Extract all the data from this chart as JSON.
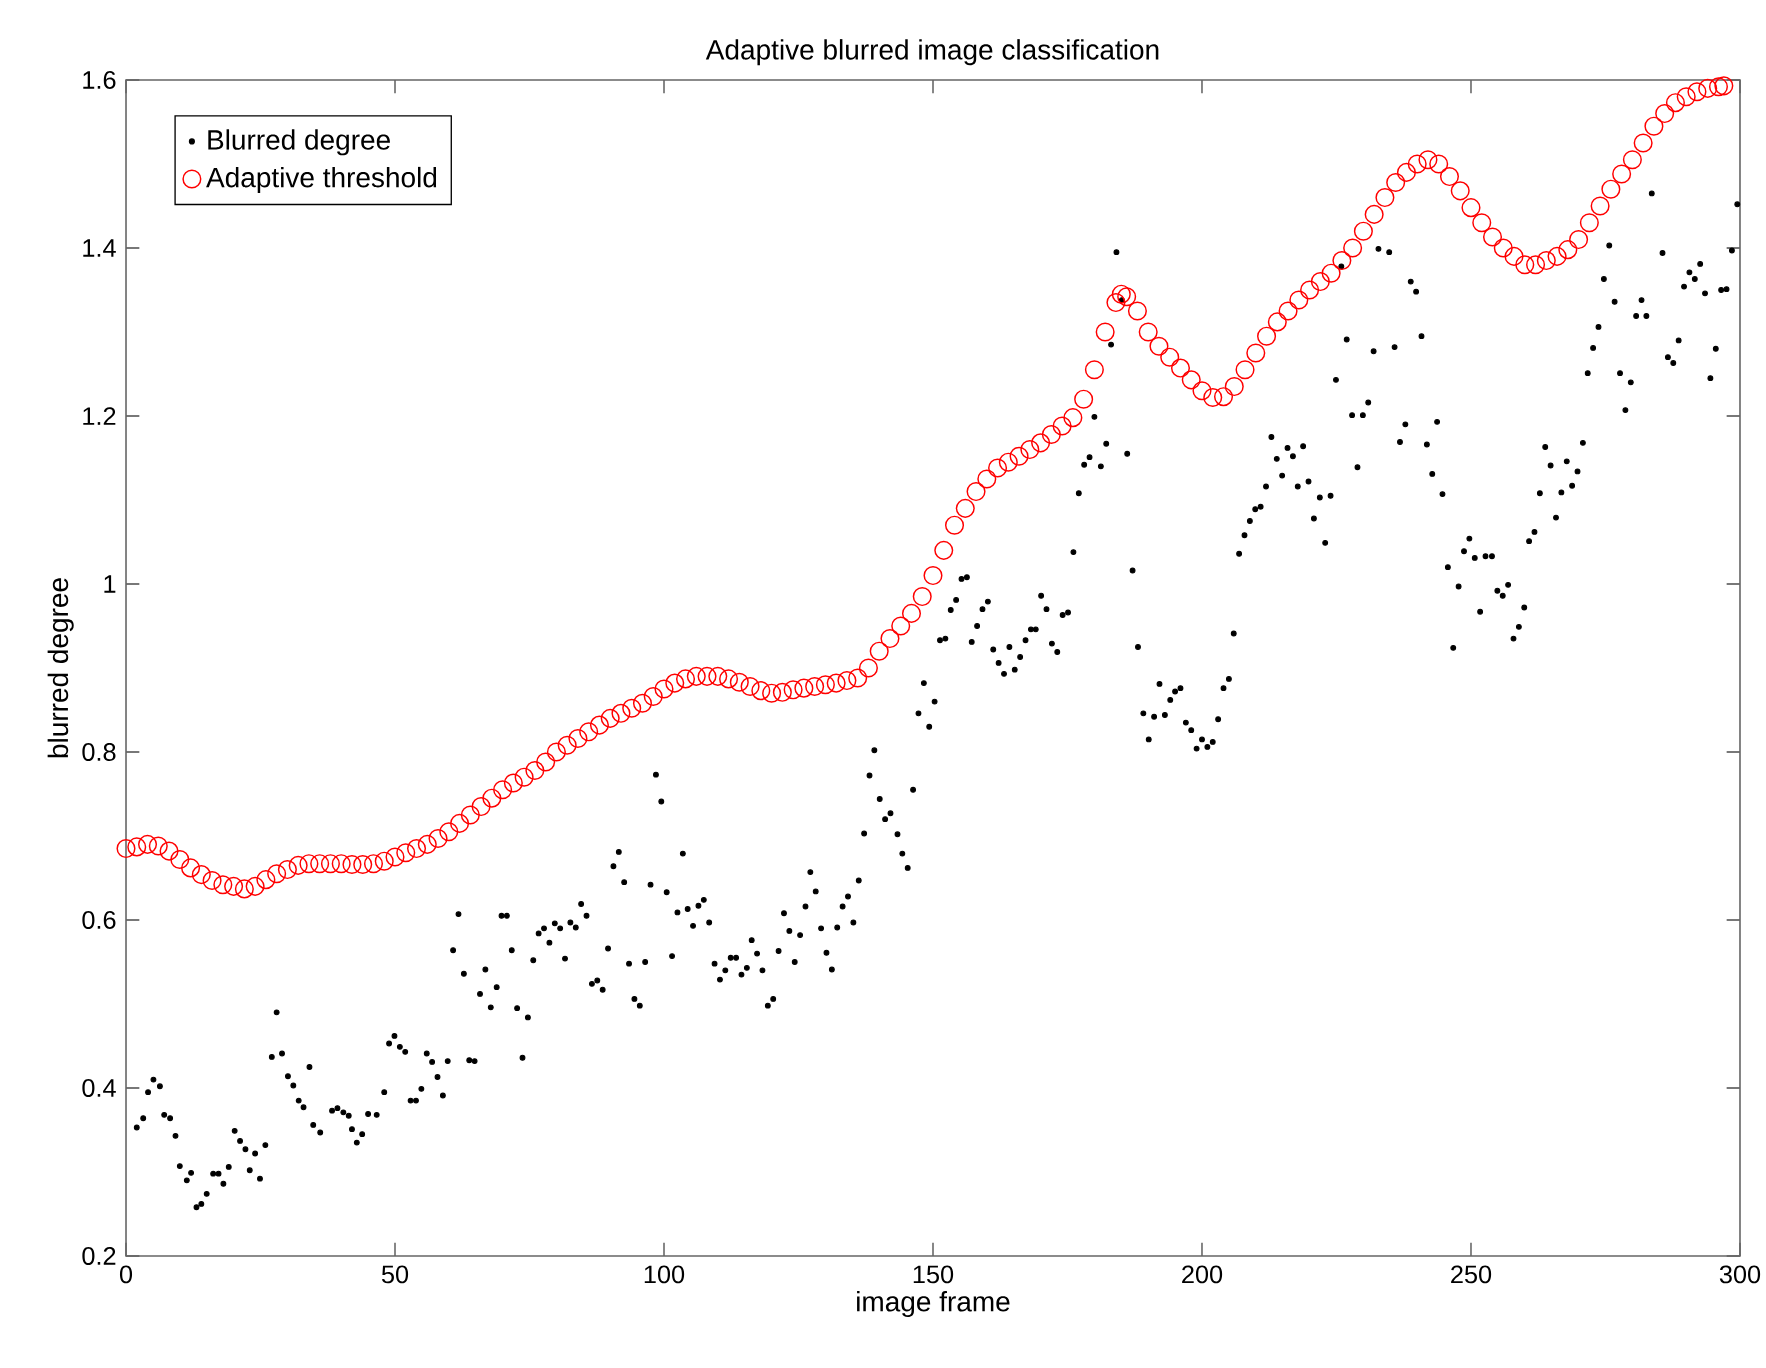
{
  "chart_data": {
    "type": "scatter",
    "title": "Adaptive blurred image classification",
    "xlabel": "image frame",
    "ylabel": "blurred degree",
    "xlim": [
      0,
      300
    ],
    "ylim": [
      0.2,
      1.6
    ],
    "xticks": [
      0,
      50,
      100,
      150,
      200,
      250,
      300
    ],
    "yticks": [
      0.2,
      0.4,
      0.6,
      0.8,
      1,
      1.2,
      1.4,
      1.6
    ],
    "grid": false,
    "legend": "top left",
    "marker": "circle",
    "series": [
      {
        "name": "Blurred degree",
        "color": "#000000",
        "x": [
          2.0,
          3.2,
          4.1,
          5.1,
          6.3,
          7.1,
          8.2,
          9.2,
          10.0,
          11.3,
          12.1,
          13.1,
          14.0,
          15.0,
          16.2,
          17.2,
          18.1,
          19.1,
          20.2,
          21.2,
          22.2,
          23.0,
          24.0,
          24.9,
          25.9,
          27.1,
          28.0,
          29.0,
          30.1,
          31.1,
          32.1,
          33.0,
          34.1,
          34.8,
          36.1,
          38.3,
          39.3,
          40.4,
          41.4,
          42.0,
          42.9,
          43.9,
          45.0,
          46.6,
          48.0,
          48.9,
          49.9,
          50.9,
          51.9,
          52.9,
          53.9,
          54.9,
          55.9,
          56.9,
          57.9,
          58.9,
          59.8,
          60.8,
          61.8,
          62.8,
          63.8,
          64.8,
          65.8,
          66.8,
          67.8,
          68.9,
          69.8,
          70.8,
          71.7,
          72.7,
          73.7,
          74.7,
          75.7,
          76.7,
          77.7,
          78.7,
          79.7,
          80.7,
          81.6,
          82.6,
          83.6,
          84.6,
          85.6,
          86.6,
          87.6,
          88.6,
          89.6,
          90.6,
          91.6,
          92.6,
          93.5,
          94.5,
          95.5,
          96.5,
          97.5,
          98.5,
          99.5,
          100.5,
          101.5,
          102.5,
          103.5,
          104.4,
          105.4,
          106.4,
          107.4,
          108.4,
          109.4,
          110.4,
          111.4,
          112.4,
          113.4,
          114.4,
          115.4,
          116.3,
          117.3,
          118.3,
          119.3,
          120.3,
          121.3,
          122.3,
          123.3,
          124.3,
          125.3,
          126.3,
          127.2,
          128.2,
          129.2,
          130.2,
          131.2,
          132.2,
          133.2,
          134.2,
          135.2,
          136.2,
          137.2,
          138.2,
          139.1,
          140.1,
          141.1,
          142.1,
          143.4,
          144.3,
          145.3,
          146.3,
          147.3,
          148.3,
          149.3,
          150.3,
          151.3,
          152.3,
          153.3,
          154.3,
          155.3,
          156.3,
          157.2,
          158.2,
          159.2,
          160.2,
          161.2,
          162.2,
          163.2,
          164.2,
          165.2,
          166.2,
          167.2,
          168.2,
          169.1,
          170.1,
          171.1,
          172.1,
          173.1,
          174.1,
          175.1,
          176.1,
          177.1,
          178.1,
          179.1,
          180.0,
          181.2,
          182.2,
          183.1,
          184.1,
          185.1,
          186.1,
          187.1,
          188.1,
          189.1,
          190.1,
          191.1,
          192.1,
          193.1,
          194.1,
          195.0,
          196.0,
          197.0,
          198.0,
          199.0,
          200.0,
          201.0,
          202.0,
          203.0,
          204.0,
          205.0,
          205.9,
          206.9,
          207.9,
          208.9,
          209.9,
          210.9,
          211.9,
          212.9,
          213.9,
          214.9,
          215.9,
          216.9,
          217.8,
          218.8,
          219.8,
          220.8,
          221.9,
          222.9,
          223.9,
          224.9,
          225.9,
          226.9,
          227.9,
          228.9,
          229.9,
          230.9,
          231.9,
          232.8,
          234.8,
          235.8,
          236.8,
          237.8,
          238.8,
          239.8,
          240.8,
          241.8,
          242.8,
          243.7,
          244.7,
          245.7,
          246.7,
          247.7,
          248.7,
          249.7,
          250.7,
          251.7,
          252.7,
          253.9,
          254.9,
          255.9,
          256.9,
          257.9,
          258.9,
          259.9,
          260.8,
          261.8,
          262.8,
          263.8,
          264.8,
          265.8,
          266.8,
          267.8,
          268.8,
          269.8,
          270.8,
          271.7,
          272.7,
          273.7,
          274.7,
          275.7,
          276.7,
          277.7,
          278.7,
          279.7,
          280.7,
          281.7,
          282.6,
          283.6,
          285.6,
          286.6,
          287.6,
          288.6,
          289.6,
          290.6,
          291.6,
          292.6,
          293.5,
          294.5,
          295.5,
          296.5,
          297.5,
          298.5,
          299.5
        ],
        "values": [
          0.353,
          0.364,
          0.395,
          0.41,
          0.402,
          0.368,
          0.364,
          0.343,
          0.307,
          0.29,
          0.299,
          0.258,
          0.262,
          0.274,
          0.298,
          0.298,
          0.286,
          0.306,
          0.349,
          0.337,
          0.327,
          0.302,
          0.322,
          0.292,
          0.332,
          0.437,
          0.49,
          0.441,
          0.414,
          0.403,
          0.385,
          0.377,
          0.425,
          0.356,
          0.347,
          0.373,
          0.376,
          0.371,
          0.367,
          0.351,
          0.335,
          0.345,
          0.369,
          0.368,
          0.395,
          0.453,
          0.462,
          0.449,
          0.443,
          0.385,
          0.385,
          0.399,
          0.441,
          0.431,
          0.413,
          0.391,
          0.432,
          0.564,
          0.607,
          0.536,
          0.433,
          0.432,
          0.512,
          0.541,
          0.496,
          0.52,
          0.605,
          0.605,
          0.564,
          0.495,
          0.436,
          0.484,
          0.552,
          0.584,
          0.59,
          0.573,
          0.596,
          0.59,
          0.554,
          0.597,
          0.591,
          0.619,
          0.605,
          0.524,
          0.528,
          0.517,
          0.566,
          0.664,
          0.681,
          0.645,
          0.548,
          0.506,
          0.498,
          0.55,
          0.642,
          0.773,
          0.741,
          0.633,
          0.557,
          0.609,
          0.679,
          0.613,
          0.593,
          0.617,
          0.624,
          0.597,
          0.548,
          0.529,
          0.54,
          0.555,
          0.555,
          0.535,
          0.543,
          0.576,
          0.56,
          0.54,
          0.498,
          0.506,
          0.563,
          0.608,
          0.587,
          0.55,
          0.582,
          0.616,
          0.657,
          0.634,
          0.59,
          0.561,
          0.541,
          0.591,
          0.616,
          0.628,
          0.597,
          0.647,
          0.703,
          0.772,
          0.802,
          0.744,
          0.72,
          0.727,
          0.702,
          0.679,
          0.662,
          0.755,
          0.846,
          0.882,
          0.83,
          0.86,
          0.933,
          0.935,
          0.969,
          0.981,
          1.006,
          1.008,
          0.931,
          0.95,
          0.97,
          0.979,
          0.922,
          0.906,
          0.893,
          0.925,
          0.898,
          0.913,
          0.933,
          0.946,
          0.946,
          0.986,
          0.97,
          0.929,
          0.919,
          0.963,
          0.966,
          1.038,
          1.108,
          1.142,
          1.151,
          1.199,
          1.14,
          1.167,
          1.285,
          1.395,
          1.338,
          1.155,
          1.016,
          0.925,
          0.846,
          0.815,
          0.842,
          0.881,
          0.844,
          0.862,
          0.872,
          0.876,
          0.835,
          0.826,
          0.804,
          0.815,
          0.806,
          0.812,
          0.839,
          0.876,
          0.887,
          0.941,
          1.036,
          1.058,
          1.075,
          1.089,
          1.092,
          1.116,
          1.175,
          1.149,
          1.129,
          1.162,
          1.152,
          1.116,
          1.164,
          1.122,
          1.078,
          1.103,
          1.049,
          1.105,
          1.243,
          1.378,
          1.291,
          1.201,
          1.139,
          1.201,
          1.216,
          1.277,
          1.399,
          1.395,
          1.282,
          1.169,
          1.19,
          1.36,
          1.348,
          1.295,
          1.166,
          1.131,
          1.193,
          1.107,
          1.02,
          0.924,
          0.997,
          1.039,
          1.054,
          1.031,
          0.967,
          1.033,
          1.033,
          0.992,
          0.986,
          0.999,
          0.935,
          0.949,
          0.972,
          1.051,
          1.062,
          1.108,
          1.163,
          1.141,
          1.079,
          1.109,
          1.146,
          1.117,
          1.134,
          1.168,
          1.251,
          1.281,
          1.306,
          1.363,
          1.403,
          1.336,
          1.251,
          1.207,
          1.24,
          1.319,
          1.338,
          1.319,
          1.465,
          1.394,
          1.27,
          1.263,
          1.29,
          1.354,
          1.371,
          1.363,
          1.381,
          1.346,
          1.245,
          1.28,
          1.35,
          1.351,
          1.397,
          1.452
        ]
      },
      {
        "name": "Adaptive threshold",
        "color": "#ff0000",
        "x": [
          0,
          2,
          4,
          6,
          8,
          10,
          12,
          14,
          16,
          18,
          20,
          22,
          24,
          26,
          28,
          30,
          32,
          34,
          36,
          38,
          40,
          42,
          44,
          46,
          48,
          50,
          52,
          54,
          56,
          58,
          60,
          62,
          64,
          66,
          68,
          70,
          72,
          74,
          76,
          78,
          80,
          82,
          84,
          86,
          88,
          90,
          92,
          94,
          96,
          98,
          100,
          102,
          104,
          106,
          108,
          110,
          112,
          114,
          116,
          118,
          120,
          122,
          124,
          126,
          128,
          130,
          132,
          134,
          136,
          138,
          140,
          142,
          144,
          146,
          148,
          150,
          152,
          154,
          156,
          158,
          160,
          162,
          164,
          166,
          168,
          170,
          172,
          174,
          176,
          178,
          180,
          182,
          184,
          185,
          186,
          188,
          190,
          192,
          194,
          196,
          198,
          200,
          202,
          204,
          206,
          208,
          210,
          212,
          214,
          216,
          218,
          220,
          222,
          224,
          226,
          228,
          230,
          232,
          234,
          236,
          238,
          240,
          242,
          244,
          246,
          248,
          250,
          252,
          254,
          256,
          258,
          260,
          262,
          264,
          266,
          268,
          270,
          272,
          274,
          276,
          278,
          280,
          282,
          284,
          286,
          288,
          290,
          292,
          294,
          296,
          297
        ],
        "values": [
          0.685,
          0.687,
          0.69,
          0.688,
          0.682,
          0.672,
          0.662,
          0.654,
          0.647,
          0.642,
          0.64,
          0.637,
          0.64,
          0.648,
          0.655,
          0.66,
          0.665,
          0.667,
          0.667,
          0.667,
          0.667,
          0.666,
          0.666,
          0.667,
          0.67,
          0.675,
          0.68,
          0.685,
          0.69,
          0.697,
          0.705,
          0.715,
          0.725,
          0.735,
          0.745,
          0.755,
          0.763,
          0.77,
          0.778,
          0.788,
          0.8,
          0.808,
          0.816,
          0.824,
          0.832,
          0.84,
          0.846,
          0.852,
          0.858,
          0.866,
          0.875,
          0.882,
          0.887,
          0.89,
          0.89,
          0.89,
          0.887,
          0.883,
          0.878,
          0.873,
          0.87,
          0.871,
          0.874,
          0.876,
          0.878,
          0.88,
          0.882,
          0.885,
          0.888,
          0.9,
          0.92,
          0.935,
          0.95,
          0.965,
          0.985,
          1.01,
          1.04,
          1.07,
          1.09,
          1.11,
          1.125,
          1.138,
          1.145,
          1.152,
          1.16,
          1.168,
          1.178,
          1.188,
          1.198,
          1.22,
          1.255,
          1.3,
          1.335,
          1.345,
          1.342,
          1.325,
          1.3,
          1.283,
          1.27,
          1.257,
          1.243,
          1.23,
          1.222,
          1.223,
          1.235,
          1.255,
          1.275,
          1.295,
          1.312,
          1.325,
          1.338,
          1.35,
          1.36,
          1.37,
          1.385,
          1.4,
          1.42,
          1.44,
          1.46,
          1.478,
          1.49,
          1.5,
          1.505,
          1.5,
          1.485,
          1.468,
          1.448,
          1.43,
          1.413,
          1.4,
          1.39,
          1.38,
          1.38,
          1.385,
          1.39,
          1.398,
          1.41,
          1.43,
          1.45,
          1.47,
          1.488,
          1.505,
          1.525,
          1.545,
          1.56,
          1.573,
          1.58,
          1.586,
          1.59,
          1.592,
          1.593
        ]
      }
    ]
  }
}
